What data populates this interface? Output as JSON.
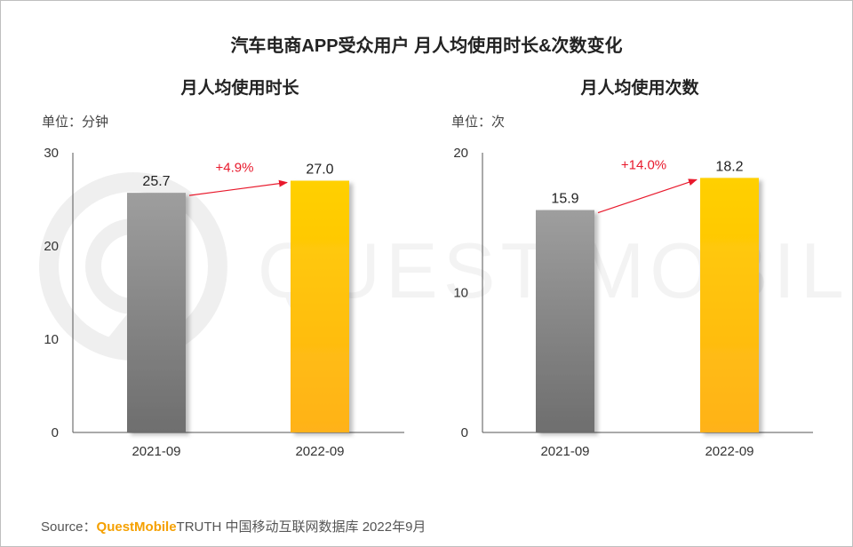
{
  "title": "汽车电商APP受众用户 月人均使用时长&次数变化",
  "footer": {
    "source_label": "Source：",
    "brand": "QuestMobile",
    "rest": "TRUTH 中国移动互联网数据库 2022年9月"
  },
  "watermark": "QUEST MOBILE",
  "colors": {
    "gray_top": "#9e9e9e",
    "gray_bottom": "#6e6e6e",
    "gold_top": "#ffd000",
    "gold_bottom": "#ffb21a",
    "arrow": "#e8192c"
  },
  "chart_data": [
    {
      "type": "bar",
      "title": "月人均使用时长",
      "unit": "单位：分钟",
      "categories": [
        "2021-09",
        "2022-09"
      ],
      "values": [
        25.7,
        27.0
      ],
      "value_labels": [
        "25.7",
        "27.0"
      ],
      "yticks": [
        0,
        10,
        20,
        30
      ],
      "ylim": [
        0,
        30
      ],
      "growth_label": "+4.9%"
    },
    {
      "type": "bar",
      "title": "月人均使用次数",
      "unit": "单位：次",
      "categories": [
        "2021-09",
        "2022-09"
      ],
      "values": [
        15.9,
        18.2
      ],
      "value_labels": [
        "15.9",
        "18.2"
      ],
      "yticks": [
        0,
        10,
        20
      ],
      "ylim": [
        0,
        20
      ],
      "growth_label": "+14.0%"
    }
  ]
}
